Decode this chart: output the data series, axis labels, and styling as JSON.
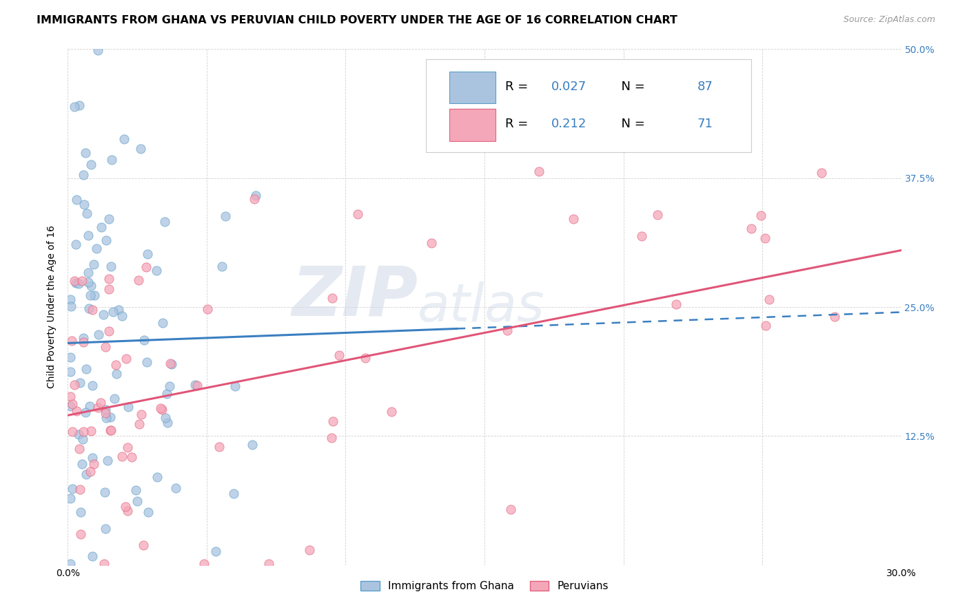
{
  "title": "IMMIGRANTS FROM GHANA VS PERUVIAN CHILD POVERTY UNDER THE AGE OF 16 CORRELATION CHART",
  "source": "Source: ZipAtlas.com",
  "ylabel": "Child Poverty Under the Age of 16",
  "xlim": [
    0.0,
    0.3
  ],
  "ylim": [
    0.0,
    0.5
  ],
  "xtick_positions": [
    0.0,
    0.05,
    0.1,
    0.15,
    0.2,
    0.25,
    0.3
  ],
  "xtick_labels": [
    "0.0%",
    "",
    "",
    "",
    "",
    "",
    "30.0%"
  ],
  "ytick_positions": [
    0.0,
    0.125,
    0.25,
    0.375,
    0.5
  ],
  "ytick_labels": [
    "",
    "12.5%",
    "25.0%",
    "37.5%",
    "50.0%"
  ],
  "ghana_color": "#aac4e0",
  "ghana_edge_color": "#5b9ec9",
  "peru_color": "#f5a7ba",
  "peru_edge_color": "#e0607a",
  "ghana_R": "0.027",
  "ghana_N": "87",
  "peru_R": "0.212",
  "peru_N": "71",
  "legend_label_ghana": "Immigrants from Ghana",
  "legend_label_peru": "Peruvians",
  "ghana_line_color": "#3a7fc1",
  "peru_line_color": "#e05578",
  "watermark_zip": "ZIP",
  "watermark_atlas": "atlas",
  "title_fontsize": 11.5,
  "axis_label_fontsize": 10,
  "tick_fontsize": 10,
  "source_fontsize": 9,
  "legend_R_color": "#3a7fc1",
  "legend_N_color": "#3a7fc1",
  "ghana_line_y0": 0.215,
  "ghana_line_y1": 0.245,
  "peru_line_y0": 0.145,
  "peru_line_y1": 0.305
}
